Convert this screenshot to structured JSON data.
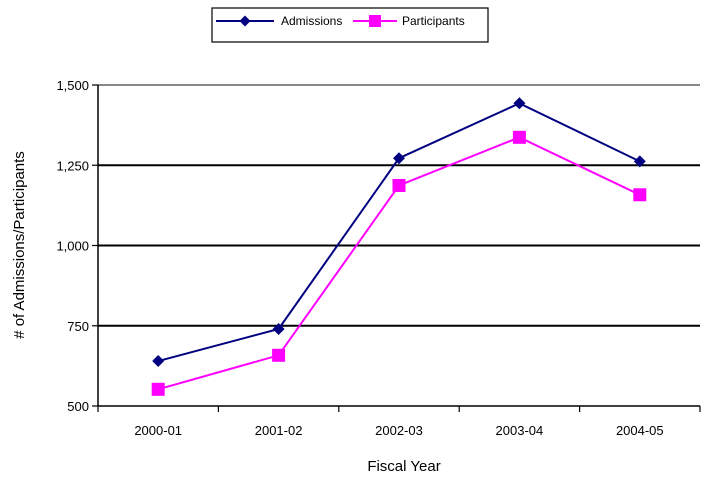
{
  "chart_data": {
    "type": "line",
    "categories": [
      "2000-01",
      "2001-02",
      "2002-03",
      "2003-04",
      "2004-05"
    ],
    "series": [
      {
        "name": "Admissions",
        "values": [
          640,
          740,
          1272,
          1443,
          1262
        ],
        "color": "#000080",
        "marker": "diamond"
      },
      {
        "name": "Participants",
        "values": [
          552,
          658,
          1187,
          1337,
          1158
        ],
        "color": "#ff00ff",
        "marker": "square"
      }
    ],
    "xlabel": "Fiscal Year",
    "ylabel": "# of Admissions/Participants",
    "ylim": [
      500,
      1500
    ],
    "yticks": [
      500,
      750,
      1000,
      1250,
      1500
    ],
    "ytick_labels": [
      "500",
      "750",
      "1,000",
      "1,250",
      "1,500"
    ],
    "grid": true,
    "legend_position": "top"
  }
}
